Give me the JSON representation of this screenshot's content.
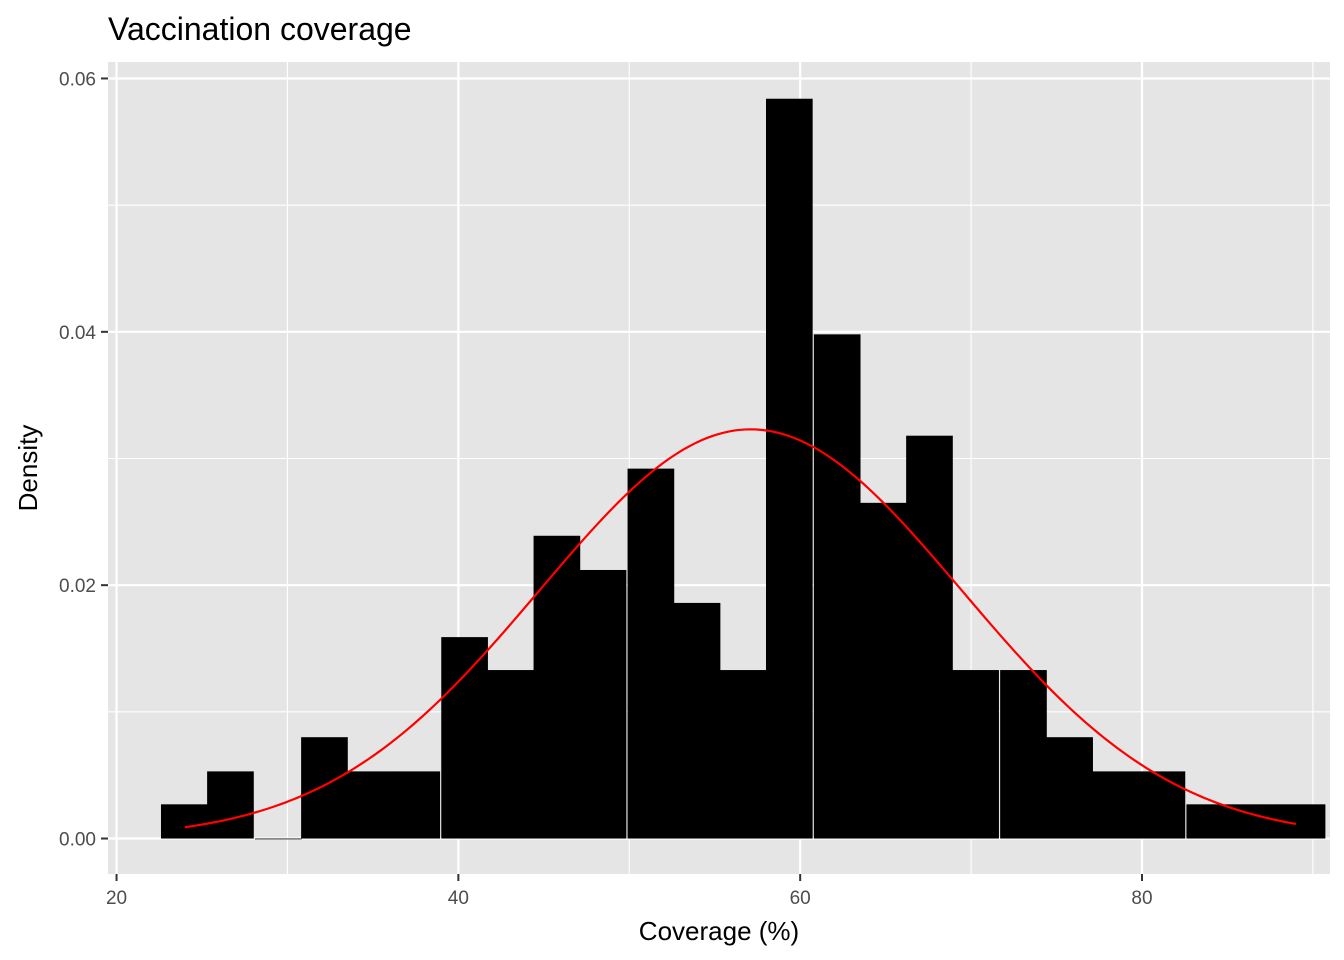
{
  "chart_data": {
    "type": "bar",
    "title": "Vaccination coverage",
    "xlabel": "Coverage (%)",
    "ylabel": "Density",
    "xlim": [
      19.5,
      91.0
    ],
    "ylim": [
      -0.0028,
      0.0613
    ],
    "x_ticks": [
      20,
      40,
      60,
      80
    ],
    "y_ticks": [
      0.0,
      0.02,
      0.04,
      0.06
    ],
    "x_tick_labels": [
      "20",
      "40",
      "60",
      "80"
    ],
    "y_tick_labels": [
      "0.00",
      "0.02",
      "0.04",
      "0.06"
    ],
    "grid": true,
    "colors": {
      "panel_background": "#e5e5e5",
      "grid_line": "#ffffff",
      "bar_fill": "#000000",
      "curve": "#ff0000"
    },
    "histogram": {
      "bin_starts": [
        22.6,
        25.3,
        28.1,
        30.8,
        33.5,
        36.2,
        39.0,
        41.7,
        44.4,
        47.1,
        49.9,
        52.6,
        55.3,
        58.0,
        60.8,
        63.5,
        66.2,
        68.9,
        71.7,
        74.4,
        77.1,
        79.8,
        82.6,
        85.3,
        88.0
      ],
      "bin_width": 2.73,
      "values": [
        0.0027,
        0.0053,
        0.0,
        0.008,
        0.0053,
        0.0053,
        0.0159,
        0.0133,
        0.0239,
        0.0212,
        0.0292,
        0.0186,
        0.0133,
        0.0584,
        0.0398,
        0.0265,
        0.0318,
        0.0133,
        0.0133,
        0.008,
        0.0053,
        0.0053,
        0.0027,
        0.0027,
        0.0027
      ]
    },
    "series": [
      {
        "type": "line",
        "mean": 57.1,
        "sd": 12.35,
        "x_range": [
          24.0,
          89.0
        ]
      }
    ]
  }
}
